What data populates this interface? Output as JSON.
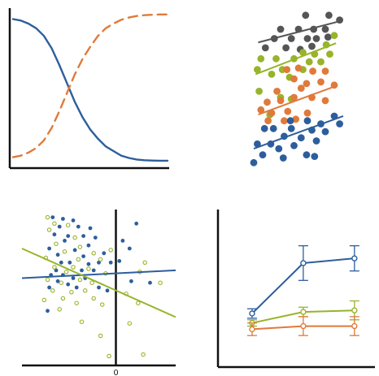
{
  "colors": {
    "blue": "#2d5e9c",
    "orange": "#e07a3a",
    "green": "#97b42a",
    "gray": "#555555",
    "axis": "#111111"
  },
  "chart_data": [
    {
      "type": "line",
      "panel": "top-left",
      "title": "",
      "xlabel": "",
      "ylabel": "",
      "xlim": [
        0,
        10
      ],
      "ylim": [
        0,
        1
      ],
      "grid": false,
      "series": [
        {
          "color": "blue",
          "style": "solid",
          "x": [
            0,
            0.5,
            1,
            1.5,
            2,
            2.5,
            3,
            3.5,
            4,
            4.5,
            5,
            5.5,
            6,
            6.5,
            7,
            7.5,
            8,
            8.5,
            9,
            9.5,
            10
          ],
          "y": [
            0.95,
            0.94,
            0.92,
            0.89,
            0.84,
            0.76,
            0.65,
            0.53,
            0.41,
            0.31,
            0.23,
            0.17,
            0.12,
            0.09,
            0.06,
            0.045,
            0.035,
            0.03,
            0.028,
            0.027,
            0.027
          ]
        },
        {
          "color": "orange",
          "style": "dashed",
          "x": [
            0,
            0.5,
            1,
            1.5,
            2,
            2.5,
            3,
            3.5,
            4,
            4.5,
            5,
            5.5,
            6,
            6.5,
            7,
            7.5,
            8,
            8.5,
            9,
            9.5,
            10
          ],
          "y": [
            0.05,
            0.06,
            0.08,
            0.11,
            0.16,
            0.24,
            0.35,
            0.47,
            0.59,
            0.69,
            0.77,
            0.84,
            0.89,
            0.92,
            0.945,
            0.96,
            0.97,
            0.975,
            0.978,
            0.98,
            0.98
          ]
        }
      ]
    },
    {
      "type": "scatter",
      "panel": "top-right",
      "title": "",
      "xlabel": "",
      "ylabel": "",
      "xlim": [
        0,
        10
      ],
      "ylim": [
        0,
        10
      ],
      "axes_visible": false,
      "series": [
        {
          "color": "gray",
          "points": [
            [
              5.8,
              9.8
            ],
            [
              8.4,
              9.8
            ],
            [
              9.6,
              9.5
            ],
            [
              3.0,
              8.9
            ],
            [
              5.0,
              8.9
            ],
            [
              6.7,
              8.9
            ],
            [
              8.0,
              8.9
            ],
            [
              2.3,
              8.3
            ],
            [
              4.2,
              8.3
            ],
            [
              6.0,
              8.3
            ],
            [
              7.0,
              8.3
            ],
            [
              8.3,
              8.4
            ],
            [
              1.3,
              7.7
            ],
            [
              3.6,
              7.7
            ],
            [
              5.2,
              7.6
            ],
            [
              6.5,
              7.8
            ]
          ],
          "trend": [
            [
              0.5,
              8.05
            ],
            [
              9.5,
              9.4
            ]
          ]
        },
        {
          "color": "green",
          "points": [
            [
              9.0,
              8.5
            ],
            [
              8.1,
              7.9
            ],
            [
              5.5,
              7.4
            ],
            [
              6.8,
              7.3
            ],
            [
              8.5,
              7.3
            ],
            [
              0.8,
              7.0
            ],
            [
              2.5,
              7.0
            ],
            [
              4.5,
              7.0
            ],
            [
              6.2,
              6.8
            ],
            [
              7.5,
              6.8
            ],
            [
              0.4,
              6.3
            ],
            [
              3.2,
              6.3
            ],
            [
              5.5,
              6.3
            ],
            [
              2.0,
              6.0
            ],
            [
              4.0,
              5.8
            ],
            [
              0.6,
              4.9
            ],
            [
              3.0,
              4.5
            ],
            [
              4.2,
              4.4
            ],
            [
              1.8,
              3.4
            ]
          ],
          "trend": [
            [
              0.2,
              6.0
            ],
            [
              9.2,
              8.0
            ]
          ]
        },
        {
          "color": "orange",
          "points": [
            [
              3.7,
              6.3
            ],
            [
              5.0,
              6.4
            ],
            [
              6.6,
              6.2
            ],
            [
              8.0,
              6.2
            ],
            [
              4.5,
              5.7
            ],
            [
              5.9,
              5.4
            ],
            [
              7.5,
              5.5
            ],
            [
              9.0,
              5.3
            ],
            [
              2.6,
              4.9
            ],
            [
              5.3,
              5.1
            ],
            [
              1.5,
              4.2
            ],
            [
              3.0,
              4.3
            ],
            [
              4.5,
              4.5
            ],
            [
              6.5,
              4.5
            ],
            [
              8.0,
              4.3
            ],
            [
              0.8,
              3.7
            ],
            [
              2.0,
              3.5
            ],
            [
              3.8,
              3.6
            ],
            [
              6.0,
              3.5
            ],
            [
              1.6,
              3.0
            ],
            [
              3.4,
              3.0
            ],
            [
              4.7,
              3.1
            ]
          ],
          "trend": [
            [
              0.5,
              3.4
            ],
            [
              9.0,
              5.2
            ]
          ]
        },
        {
          "color": "blue",
          "points": [
            [
              9.0,
              3.3
            ],
            [
              6.0,
              3.0
            ],
            [
              7.5,
              2.8
            ],
            [
              9.6,
              2.8
            ],
            [
              4.1,
              3.0
            ],
            [
              1.2,
              2.5
            ],
            [
              2.2,
              2.5
            ],
            [
              4.2,
              2.5
            ],
            [
              6.5,
              2.4
            ],
            [
              8.0,
              2.3
            ],
            [
              3.4,
              2.0
            ],
            [
              5.3,
              1.9
            ],
            [
              7.0,
              1.7
            ],
            [
              0.4,
              1.5
            ],
            [
              1.9,
              1.5
            ],
            [
              4.5,
              1.4
            ],
            [
              2.8,
              1.2
            ],
            [
              5.9,
              0.8
            ],
            [
              1.0,
              0.8
            ],
            [
              3.3,
              0.6
            ],
            [
              6.8,
              0.7
            ],
            [
              0.0,
              0.3
            ]
          ],
          "trend": [
            [
              0.0,
              1.2
            ],
            [
              10.0,
              3.3
            ]
          ]
        }
      ]
    },
    {
      "type": "scatter",
      "panel": "bottom-left",
      "title": "",
      "xlabel": "",
      "ylabel": "",
      "xlim": [
        -5.5,
        3.5
      ],
      "ylim": [
        -4.5,
        5.5
      ],
      "x_tick_labels": [
        {
          "x": 0,
          "label": "0"
        }
      ],
      "vertical_reference_x": 0,
      "series": [
        {
          "color": "blue",
          "marker": "filled",
          "points": [
            [
              -3.7,
              5.0
            ],
            [
              -3.1,
              4.9
            ],
            [
              -2.5,
              4.8
            ],
            [
              1.2,
              4.6
            ],
            [
              -3.3,
              4.4
            ],
            [
              -2.2,
              4.4
            ],
            [
              -1.5,
              4.3
            ],
            [
              -3.6,
              3.9
            ],
            [
              -2.8,
              3.8
            ],
            [
              -1.9,
              3.8
            ],
            [
              -3.0,
              3.5
            ],
            [
              -1.2,
              3.7
            ],
            [
              -1.6,
              3.2
            ],
            [
              0.4,
              3.5
            ],
            [
              0.8,
              3.0
            ],
            [
              -3.9,
              3.0
            ],
            [
              -2.4,
              2.9
            ],
            [
              -3.4,
              2.6
            ],
            [
              -0.7,
              2.7
            ],
            [
              -1.9,
              2.5
            ],
            [
              0.2,
              2.2
            ],
            [
              -3.2,
              2.1
            ],
            [
              -2.7,
              2.1
            ],
            [
              -1.6,
              2.0
            ],
            [
              -1.0,
              2.1
            ],
            [
              -0.3,
              2.1
            ],
            [
              -3.5,
              1.6
            ],
            [
              -2.0,
              1.6
            ],
            [
              -1.3,
              1.6
            ],
            [
              -3.8,
              1.3
            ],
            [
              -3.1,
              1.3
            ],
            [
              -2.5,
              1.1
            ],
            [
              -1.8,
              1.1
            ],
            [
              -3.4,
              0.9
            ],
            [
              0.9,
              0.9
            ],
            [
              2.0,
              0.8
            ],
            [
              -2.8,
              0.7
            ],
            [
              -3.9,
              0.5
            ],
            [
              -1.0,
              0.5
            ],
            [
              -2.3,
              0.5
            ],
            [
              -4.0,
              -1.0
            ],
            [
              -0.5,
              0.3
            ]
          ]
        },
        {
          "color": "green",
          "marker": "hollow",
          "points": [
            [
              -4.0,
              5.0
            ],
            [
              -3.6,
              4.6
            ],
            [
              -2.8,
              4.5
            ],
            [
              -3.9,
              4.2
            ],
            [
              -2.4,
              3.7
            ],
            [
              -3.5,
              3.3
            ],
            [
              -2.1,
              3.1
            ],
            [
              -3.0,
              2.8
            ],
            [
              -1.3,
              2.7
            ],
            [
              -0.3,
              2.9
            ],
            [
              -4.1,
              2.4
            ],
            [
              -2.2,
              2.3
            ],
            [
              -0.9,
              2.3
            ],
            [
              1.7,
              2.1
            ],
            [
              -3.6,
              1.8
            ],
            [
              -2.5,
              1.8
            ],
            [
              -1.6,
              1.7
            ],
            [
              -2.9,
              1.5
            ],
            [
              -0.6,
              1.4
            ],
            [
              1.4,
              1.5
            ],
            [
              -4.0,
              1.0
            ],
            [
              -2.1,
              1.0
            ],
            [
              -3.2,
              0.8
            ],
            [
              -1.4,
              0.8
            ],
            [
              2.6,
              0.8
            ],
            [
              -3.7,
              0.3
            ],
            [
              -1.8,
              0.3
            ],
            [
              -2.6,
              0.2
            ],
            [
              -3.1,
              -0.2
            ],
            [
              -1.3,
              -0.2
            ],
            [
              0.6,
              0.1
            ],
            [
              -4.2,
              -0.3
            ],
            [
              -2.3,
              -0.5
            ],
            [
              1.3,
              -0.5
            ],
            [
              -0.8,
              -0.6
            ],
            [
              -3.3,
              -0.9
            ],
            [
              -2.0,
              -1.7
            ],
            [
              0.8,
              -1.8
            ],
            [
              -0.9,
              -2.6
            ],
            [
              -0.4,
              -3.9
            ],
            [
              1.6,
              -3.8
            ]
          ]
        }
      ],
      "trends": [
        {
          "color": "blue",
          "line": [
            [
              -5.5,
              1.1
            ],
            [
              3.5,
              1.6
            ]
          ]
        },
        {
          "color": "green",
          "line": [
            [
              -5.5,
              3.0
            ],
            [
              3.5,
              -1.4
            ]
          ]
        }
      ]
    },
    {
      "type": "line",
      "panel": "bottom-right",
      "title": "",
      "xlabel": "",
      "ylabel": "",
      "xlim": [
        0,
        4.6
      ],
      "ylim": [
        0,
        10
      ],
      "grid": false,
      "series": [
        {
          "color": "blue",
          "x": [
            1,
            2.5,
            4
          ],
          "y": [
            3.4,
            6.6,
            6.9
          ],
          "err": [
            0.3,
            1.1,
            0.8
          ]
        },
        {
          "color": "green",
          "x": [
            1,
            2.5,
            4
          ],
          "y": [
            2.8,
            3.5,
            3.6
          ],
          "err": [
            0.2,
            0.3,
            0.6
          ]
        },
        {
          "color": "orange",
          "x": [
            1,
            2.5,
            4
          ],
          "y": [
            2.4,
            2.6,
            2.6
          ],
          "err": [
            0.4,
            0.6,
            0.6
          ]
        }
      ]
    }
  ]
}
